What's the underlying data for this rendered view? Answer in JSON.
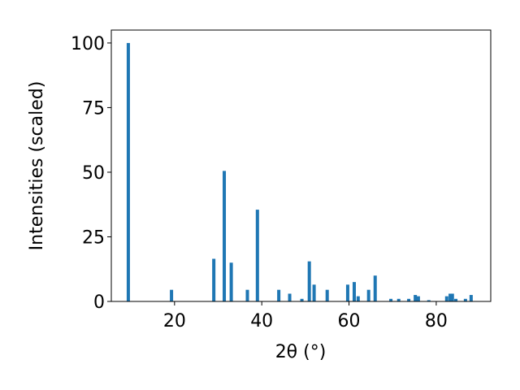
{
  "chart_data": {
    "type": "bar",
    "xlabel": "2θ (°)",
    "ylabel": "Intensities (scaled)",
    "x": [
      9.4,
      19.3,
      29.0,
      31.4,
      33.0,
      36.7,
      39.0,
      43.9,
      46.4,
      49.2,
      50.9,
      52.0,
      55.0,
      59.7,
      61.2,
      62.1,
      64.5,
      66.0,
      69.6,
      71.4,
      73.7,
      75.2,
      75.9,
      78.3,
      82.4,
      83.2,
      83.7,
      84.5,
      86.7,
      88.0
    ],
    "values": [
      100,
      4.5,
      16.5,
      50.5,
      15,
      4.5,
      35.5,
      4.5,
      3,
      1,
      15.5,
      6.5,
      4.5,
      6.5,
      7.5,
      2,
      4.5,
      10,
      1,
      1,
      1,
      2.5,
      2,
      0.5,
      2,
      3,
      3,
      1,
      1,
      2.5
    ],
    "color": "#1f77b4",
    "xlim": [
      5.5,
      92.5
    ],
    "ylim": [
      0,
      105
    ],
    "xticks": [
      20,
      40,
      60,
      80
    ],
    "yticks": [
      0,
      25,
      50,
      75,
      100
    ]
  }
}
